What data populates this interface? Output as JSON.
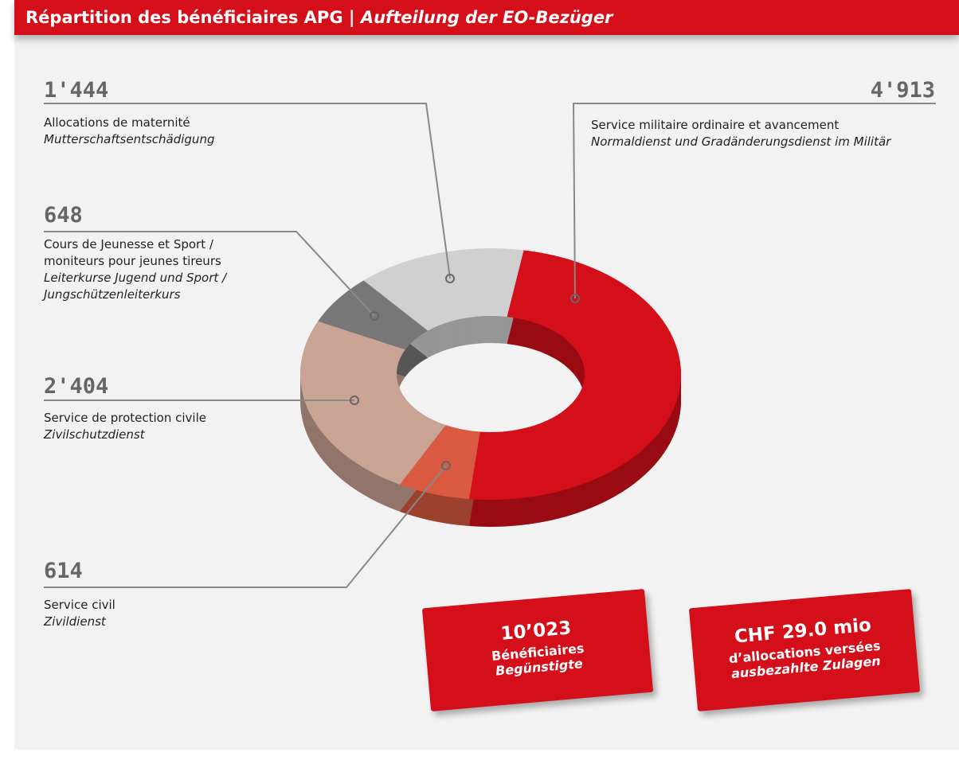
{
  "header": {
    "title": "Répartition des bénéficiaires APG",
    "subtitle": "Aufteilung der EO-Bezüger"
  },
  "chart_data": {
    "type": "donut",
    "categories": [
      "Service militaire ordinaire et avancement",
      "Service civil",
      "Service de protection civile",
      "Cours de Jeunesse et Sport / moniteurs pour jeunes tireurs",
      "Allocations de maternité"
    ],
    "categories_de": [
      "Normaldienst und Gradänderungsdienst im Militär",
      "Zivildienst",
      "Zivilschutzdienst",
      "Leiterkurse Jugend und Sport / Jungschützenleiterkurs",
      "Mutterschaftsentschädigung"
    ],
    "values": [
      4913,
      614,
      2404,
      648,
      1444
    ],
    "value_labels": [
      "4'913",
      "614",
      "2'404",
      "648",
      "1'444"
    ],
    "colors": [
      "#d40f1a",
      "#d95a40",
      "#c9a393",
      "#777777",
      "#cfd0cf"
    ]
  },
  "callouts": [
    {
      "value": "10’023",
      "label": "Bénéficiaires",
      "label_de": "Begünstigte"
    },
    {
      "value": "CHF 29.0 mio",
      "label": "d’allocations versées",
      "label_de": "ausbezahlte Zulagen"
    }
  ]
}
